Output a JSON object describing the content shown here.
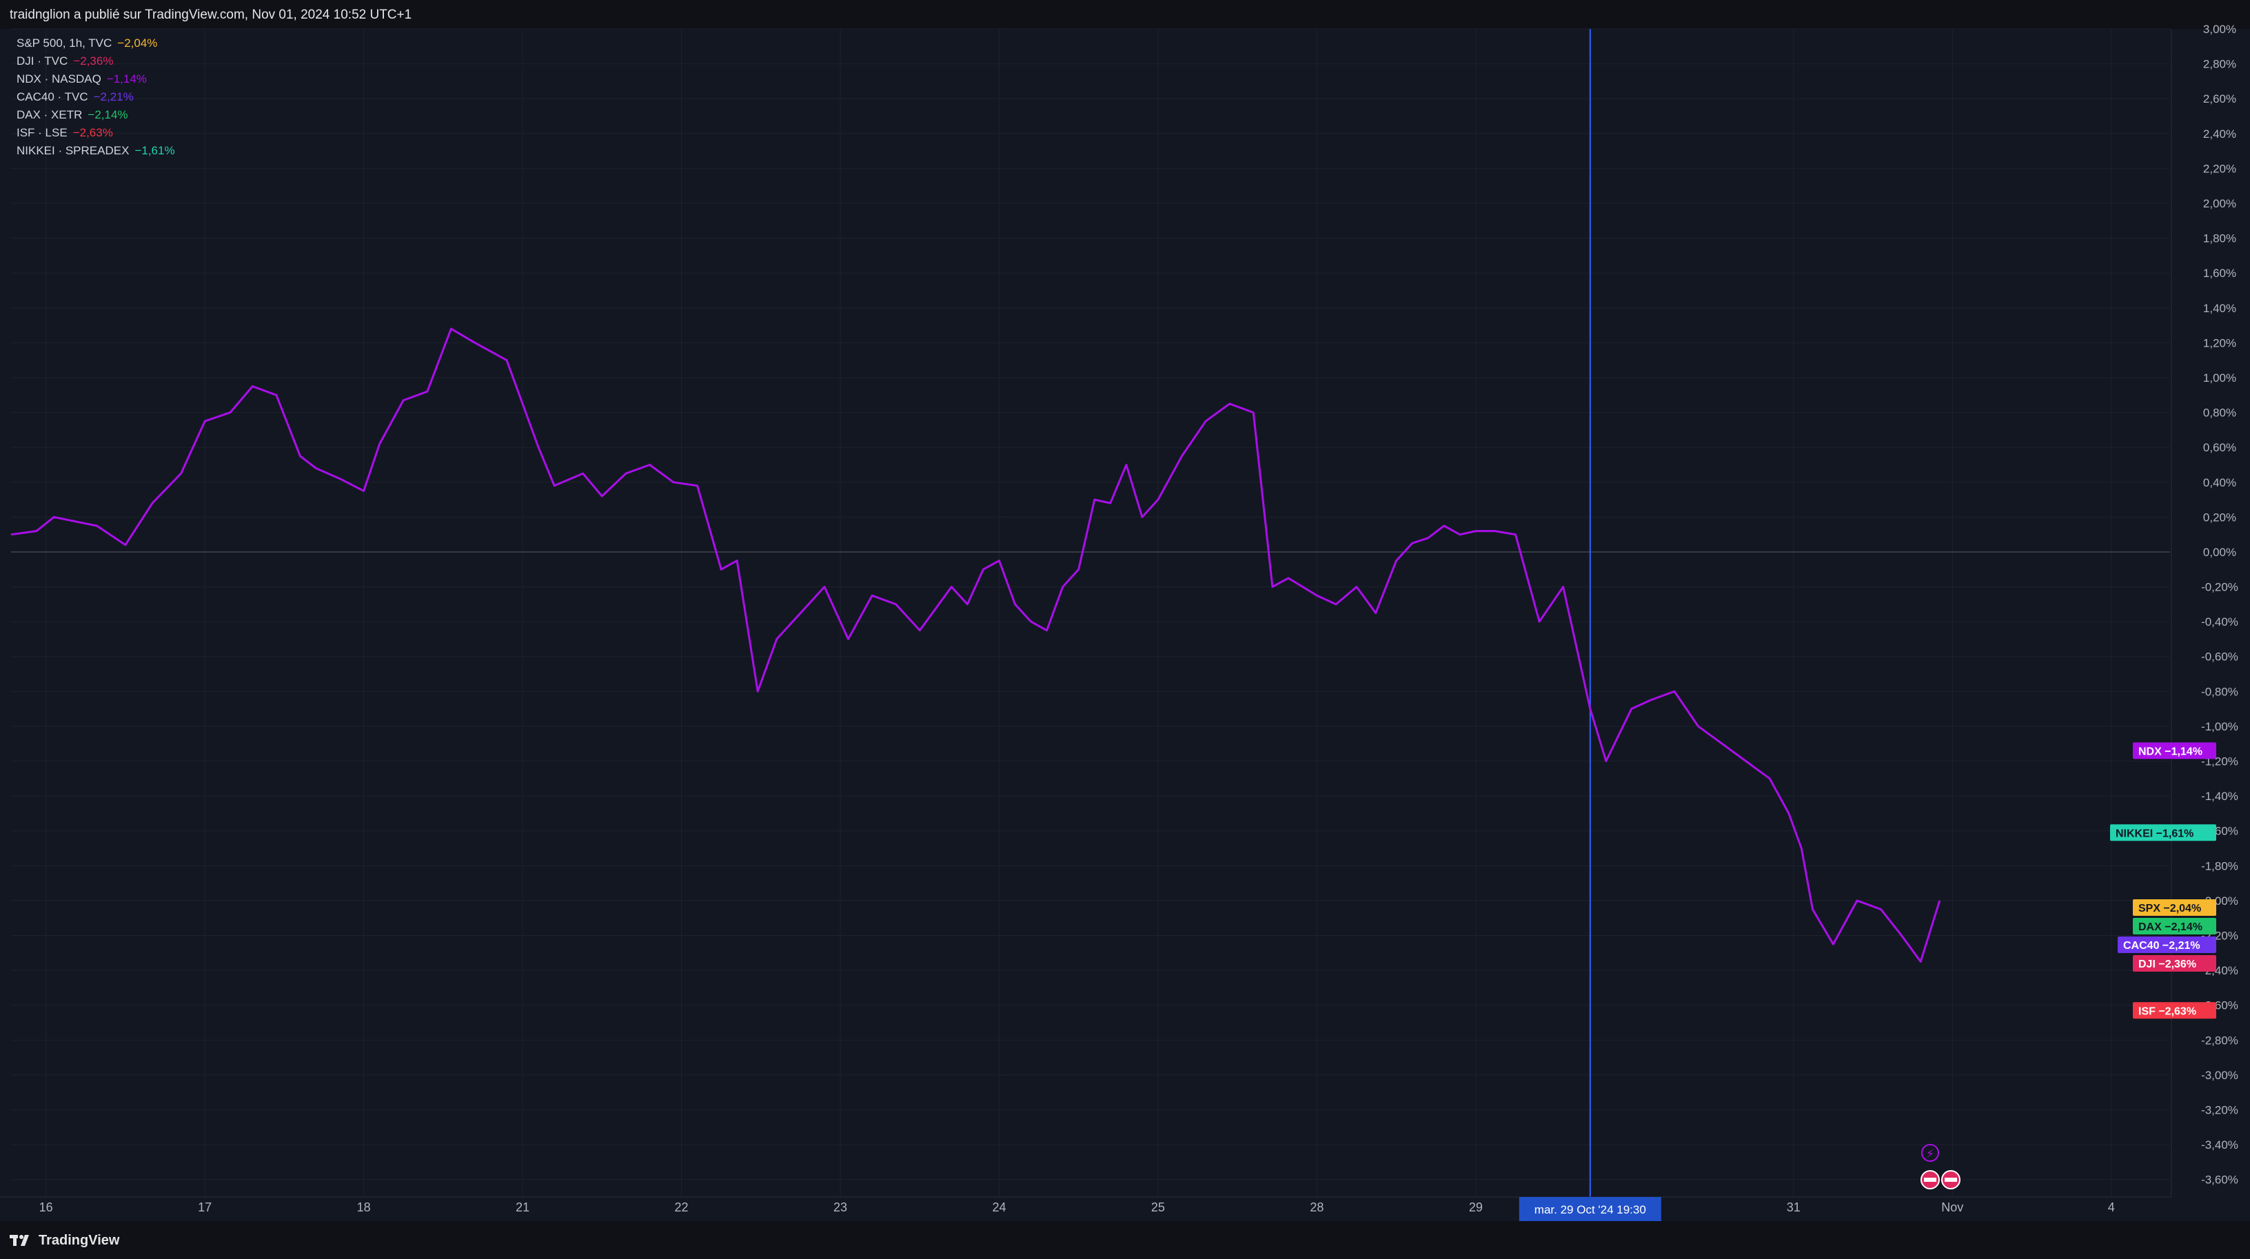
{
  "header": {
    "published_text": "traidnglion a publié sur TradingView.com, Nov 01, 2024 10:52 UTC+1"
  },
  "footer": {
    "brand": "TradingView"
  },
  "colors": {
    "background": "#131722",
    "grid": "#1e222d",
    "SPX": "#f5b82e",
    "DJI": "#e0275f",
    "NDX": "#a80fe8",
    "CAC40": "#6f34ee",
    "DAX": "#1fc46a",
    "ISF": "#f23645",
    "NIKKEI": "#22d3b0",
    "crosshair": "#2962ff",
    "badge": "#2151c9"
  },
  "crosshair_label": "mar. 29 Oct '24   19:30",
  "chart_data": {
    "type": "line",
    "title": "",
    "ylim": [
      -3.7,
      3.0
    ],
    "y_ticks": [
      "3,00%",
      "2,80%",
      "2,60%",
      "2,40%",
      "2,20%",
      "2,00%",
      "1,80%",
      "1,60%",
      "1,40%",
      "1,20%",
      "1,00%",
      "0,80%",
      "0,60%",
      "0,40%",
      "0,20%",
      "0,00%",
      "-0,20%",
      "-0,40%",
      "-0,60%",
      "-0,80%",
      "-1,00%",
      "-1,20%",
      "-1,40%",
      "-1,60%",
      "-1,80%",
      "-2,00%",
      "-2,20%",
      "-2,40%",
      "-2,60%",
      "-2,80%",
      "-3,00%",
      "-3,20%",
      "-3,40%",
      "-3,60%"
    ],
    "y_tick_values": [
      3.0,
      2.8,
      2.6,
      2.4,
      2.2,
      2.0,
      1.8,
      1.6,
      1.4,
      1.2,
      1.0,
      0.8,
      0.6,
      0.4,
      0.2,
      0.0,
      -0.2,
      -0.4,
      -0.6,
      -0.8,
      -1.0,
      -1.2,
      -1.4,
      -1.6,
      -1.8,
      -2.0,
      -2.2,
      -2.4,
      -2.6,
      -2.8,
      -3.0,
      -3.2,
      -3.4,
      -3.6
    ],
    "x_ticks": [
      "16",
      "17",
      "18",
      "21",
      "22",
      "23",
      "24",
      "25",
      "28",
      "29",
      "31",
      "Nov",
      "4"
    ],
    "x_tick_values": [
      1,
      2,
      3,
      4,
      5,
      6,
      7,
      8,
      9,
      10,
      12,
      13,
      14
    ],
    "xlim": [
      0.78,
      14.37
    ],
    "crosshair_x": 10.72,
    "series": [
      {
        "key": "NDX",
        "legend": "NDX · NASDAQ",
        "value_label": "−1,14%",
        "badge": "NDX",
        "badge_value": "−1,14%",
        "x": [
          0.78,
          0.94,
          1.05,
          1.32,
          1.5,
          1.67,
          1.85,
          2.0,
          2.16,
          2.3,
          2.45,
          2.6,
          2.7,
          2.85,
          3.0,
          3.1,
          3.25,
          3.4,
          3.55,
          3.7,
          3.9,
          4.0,
          4.1,
          4.2,
          4.38,
          4.5,
          4.65,
          4.8,
          4.95,
          5.1,
          5.25,
          5.35,
          5.48,
          5.6,
          5.75,
          5.9,
          6.05,
          6.2,
          6.35,
          6.5,
          6.7,
          6.8,
          6.9,
          7.0,
          7.1,
          7.2,
          7.3,
          7.4,
          7.5,
          7.6,
          7.7,
          7.8,
          7.9,
          8.0,
          8.15,
          8.3,
          8.45,
          8.6,
          8.72,
          8.82,
          9.0,
          9.12,
          9.25,
          9.37,
          9.5,
          9.6,
          9.7,
          9.8,
          9.9,
          10.0,
          10.12,
          10.25,
          10.4,
          10.55,
          10.72,
          10.82,
          10.98,
          11.1,
          11.25,
          11.4,
          11.55,
          11.7,
          11.85,
          11.97,
          12.05,
          12.12,
          12.25,
          12.4,
          12.55,
          12.68,
          12.8,
          12.92
        ],
        "y": [
          0.1,
          0.12,
          0.2,
          0.15,
          0.04,
          0.28,
          0.45,
          0.75,
          0.8,
          0.95,
          0.9,
          0.55,
          0.48,
          0.42,
          0.35,
          0.62,
          0.87,
          0.92,
          1.28,
          1.2,
          1.1,
          0.85,
          0.6,
          0.38,
          0.45,
          0.32,
          0.45,
          0.5,
          0.4,
          0.38,
          -0.1,
          -0.05,
          -0.8,
          -0.5,
          -0.35,
          -0.2,
          -0.5,
          -0.25,
          -0.3,
          -0.45,
          -0.2,
          -0.3,
          -0.1,
          -0.05,
          -0.3,
          -0.4,
          -0.45,
          -0.2,
          -0.1,
          0.3,
          0.28,
          0.5,
          0.2,
          0.3,
          0.55,
          0.75,
          0.85,
          0.8,
          -0.2,
          -0.15,
          -0.25,
          -0.3,
          -0.2,
          -0.35,
          -0.05,
          0.05,
          0.08,
          0.15,
          0.1,
          0.12,
          0.12,
          0.1,
          -0.4,
          -0.2,
          -0.9,
          -1.2,
          -0.9,
          -0.85,
          -0.8,
          -1.0,
          -1.1,
          -1.2,
          -1.3,
          -1.5,
          -1.7,
          -2.05,
          -2.25,
          -2.0,
          -2.05,
          -2.2,
          -2.35,
          -2.0
        ]
      },
      {
        "key": "DJI",
        "legend": "DJI · TVC",
        "value_label": "−2,36%",
        "badge": "DJI",
        "badge_value": "−2,36%"
      },
      {
        "key": "SPX",
        "legend": "S&P 500, 1h, TVC",
        "value_label": "−2,04%",
        "badge": "SPX",
        "badge_value": "−2,04%"
      },
      {
        "key": "CAC40",
        "legend": "CAC40 · TVC",
        "value_label": "−2,21%",
        "badge": "CAC40",
        "badge_value": "−2,21%"
      },
      {
        "key": "DAX",
        "legend": "DAX · XETR",
        "value_label": "−2,14%",
        "badge": "DAX",
        "badge_value": "−2,14%"
      },
      {
        "key": "ISF",
        "legend": "ISF · LSE",
        "value_label": "−2,63%",
        "badge": "ISF",
        "badge_value": "−2,63%"
      },
      {
        "key": "NIKKEI",
        "legend": "NIKKEI · SPREADEX",
        "value_label": "−1,61%",
        "badge": "NIKKEI",
        "badge_value": "−1,61%"
      }
    ]
  }
}
